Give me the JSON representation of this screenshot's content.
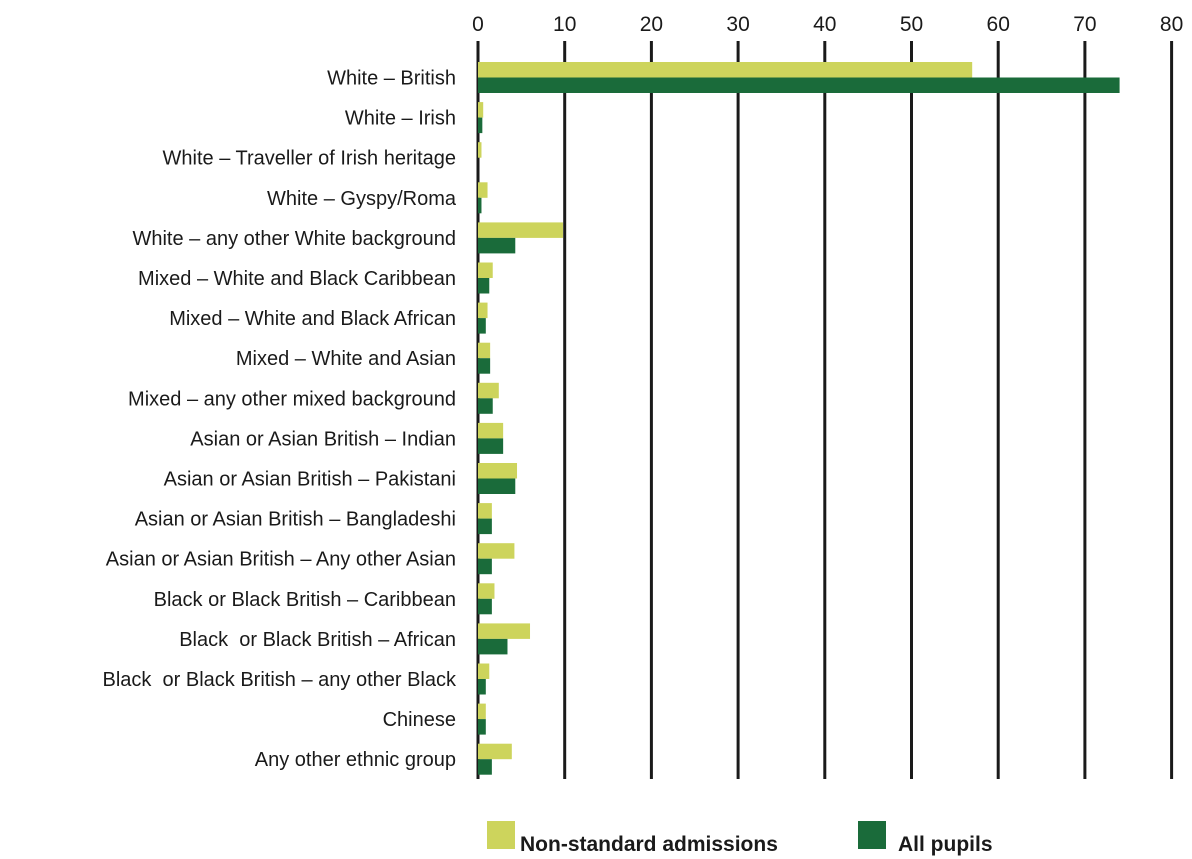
{
  "chart_data": {
    "type": "bar",
    "orientation": "horizontal",
    "categories": [
      "White – British",
      "White – Irish",
      "White – Traveller of Irish heritage",
      "White – Gyspy/Roma",
      "White – any other White background",
      "Mixed – White and Black Caribbean",
      "Mixed – White and Black African",
      "Mixed – White and Asian",
      "Mixed – any other mixed background",
      "Asian or Asian British – Indian",
      "Asian or Asian British – Pakistani",
      "Asian or Asian British – Bangladeshi",
      "Asian or Asian British – Any other Asian",
      "Black or Black British – Caribbean",
      "Black  or Black British – African",
      "Black  or Black British – any other Black",
      "Chinese",
      "Any other ethnic group"
    ],
    "series": [
      {
        "name": "Non-standard admissions",
        "color": "#cdd45c",
        "values": [
          57.0,
          0.6,
          0.4,
          1.1,
          9.8,
          1.7,
          1.1,
          1.4,
          2.4,
          2.9,
          4.5,
          1.6,
          4.2,
          1.9,
          6.0,
          1.3,
          0.9,
          3.9
        ]
      },
      {
        "name": "All pupils",
        "color": "#1a6b3a",
        "values": [
          74.0,
          0.5,
          0.0,
          0.4,
          4.3,
          1.3,
          0.9,
          1.4,
          1.7,
          2.9,
          4.3,
          1.6,
          1.6,
          1.6,
          3.4,
          0.9,
          0.9,
          1.6
        ]
      }
    ],
    "x_ticks": [
      "0",
      "10",
      "20",
      "30",
      "40",
      "50",
      "60",
      "70",
      "80"
    ],
    "xlim": [
      0,
      80
    ],
    "x_axis_position": "top",
    "grid": true,
    "legend_position": "bottom-center",
    "title": "",
    "xlabel": "",
    "ylabel": ""
  }
}
